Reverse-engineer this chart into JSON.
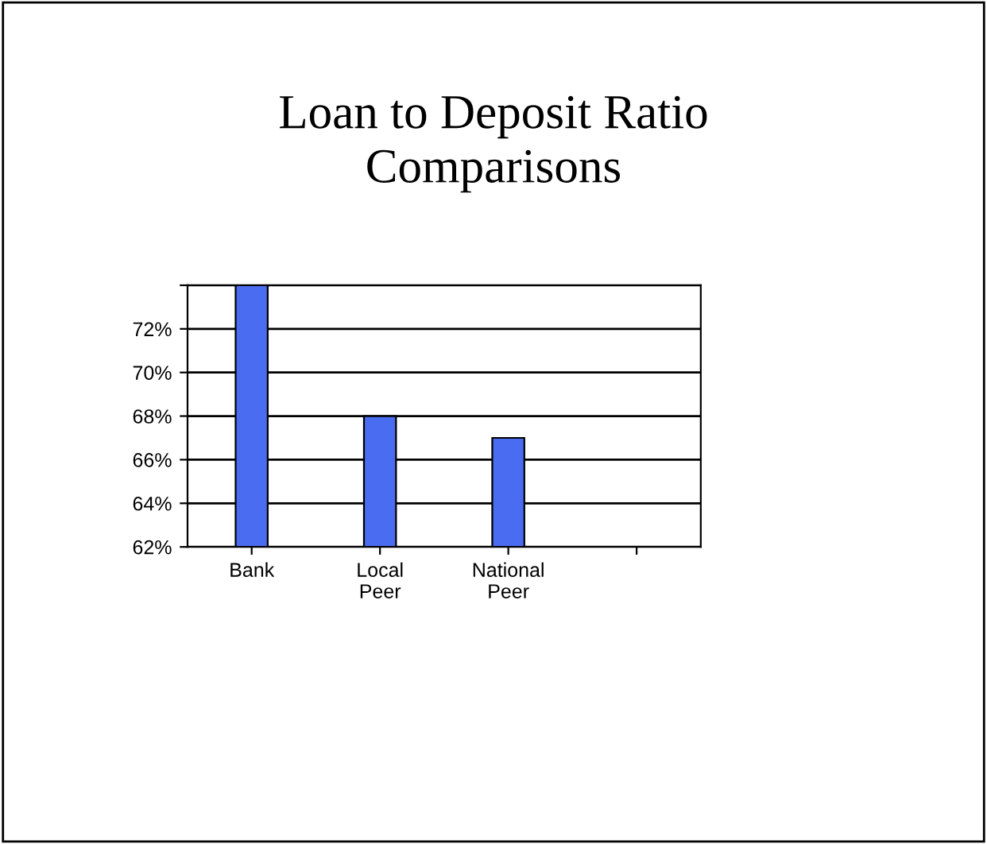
{
  "chart_data": {
    "type": "bar",
    "title": "Loan to Deposit Ratio\nComparisons",
    "categories": [
      "Bank",
      "Local\nPeer",
      "National\nPeer",
      null
    ],
    "values": [
      74,
      68,
      67,
      null
    ],
    "color": "#4a6cf0",
    "ylim": [
      62,
      74
    ],
    "yticks": [
      {
        "value": 62,
        "label": "62%"
      },
      {
        "value": 64,
        "label": "64%"
      },
      {
        "value": 66,
        "label": "66%"
      },
      {
        "value": 68,
        "label": "68%"
      },
      {
        "value": 70,
        "label": "70%"
      },
      {
        "value": 72,
        "label": "72%"
      },
      {
        "value": 74,
        "label": null
      }
    ],
    "grid": "y"
  }
}
